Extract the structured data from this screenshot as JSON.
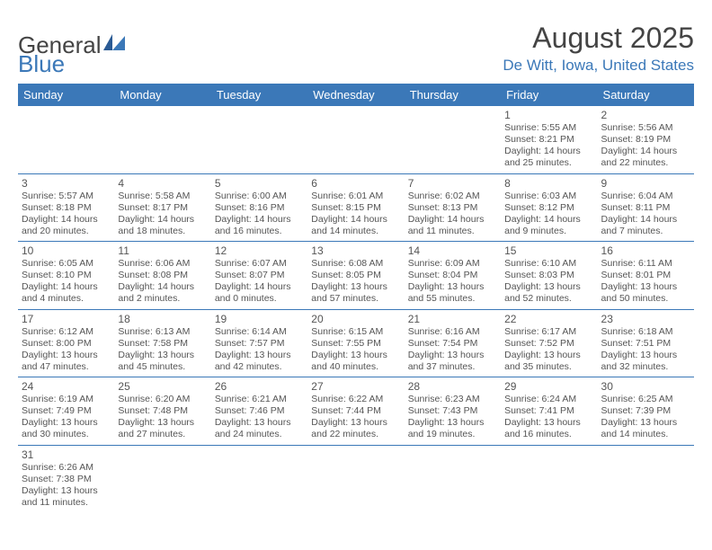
{
  "brand": {
    "part1": "General",
    "part2": "Blue"
  },
  "title": "August 2025",
  "location": "De Witt, Iowa, United States",
  "colors": {
    "header_bg": "#3b78b8",
    "header_text": "#ffffff",
    "accent": "#3b78b8",
    "body_text": "#555555",
    "page_bg": "#ffffff"
  },
  "weekdays": [
    "Sunday",
    "Monday",
    "Tuesday",
    "Wednesday",
    "Thursday",
    "Friday",
    "Saturday"
  ],
  "weeks": [
    [
      null,
      null,
      null,
      null,
      null,
      {
        "n": "1",
        "sr": "Sunrise: 5:55 AM",
        "ss": "Sunset: 8:21 PM",
        "dl": "Daylight: 14 hours and 25 minutes."
      },
      {
        "n": "2",
        "sr": "Sunrise: 5:56 AM",
        "ss": "Sunset: 8:19 PM",
        "dl": "Daylight: 14 hours and 22 minutes."
      }
    ],
    [
      {
        "n": "3",
        "sr": "Sunrise: 5:57 AM",
        "ss": "Sunset: 8:18 PM",
        "dl": "Daylight: 14 hours and 20 minutes."
      },
      {
        "n": "4",
        "sr": "Sunrise: 5:58 AM",
        "ss": "Sunset: 8:17 PM",
        "dl": "Daylight: 14 hours and 18 minutes."
      },
      {
        "n": "5",
        "sr": "Sunrise: 6:00 AM",
        "ss": "Sunset: 8:16 PM",
        "dl": "Daylight: 14 hours and 16 minutes."
      },
      {
        "n": "6",
        "sr": "Sunrise: 6:01 AM",
        "ss": "Sunset: 8:15 PM",
        "dl": "Daylight: 14 hours and 14 minutes."
      },
      {
        "n": "7",
        "sr": "Sunrise: 6:02 AM",
        "ss": "Sunset: 8:13 PM",
        "dl": "Daylight: 14 hours and 11 minutes."
      },
      {
        "n": "8",
        "sr": "Sunrise: 6:03 AM",
        "ss": "Sunset: 8:12 PM",
        "dl": "Daylight: 14 hours and 9 minutes."
      },
      {
        "n": "9",
        "sr": "Sunrise: 6:04 AM",
        "ss": "Sunset: 8:11 PM",
        "dl": "Daylight: 14 hours and 7 minutes."
      }
    ],
    [
      {
        "n": "10",
        "sr": "Sunrise: 6:05 AM",
        "ss": "Sunset: 8:10 PM",
        "dl": "Daylight: 14 hours and 4 minutes."
      },
      {
        "n": "11",
        "sr": "Sunrise: 6:06 AM",
        "ss": "Sunset: 8:08 PM",
        "dl": "Daylight: 14 hours and 2 minutes."
      },
      {
        "n": "12",
        "sr": "Sunrise: 6:07 AM",
        "ss": "Sunset: 8:07 PM",
        "dl": "Daylight: 14 hours and 0 minutes."
      },
      {
        "n": "13",
        "sr": "Sunrise: 6:08 AM",
        "ss": "Sunset: 8:05 PM",
        "dl": "Daylight: 13 hours and 57 minutes."
      },
      {
        "n": "14",
        "sr": "Sunrise: 6:09 AM",
        "ss": "Sunset: 8:04 PM",
        "dl": "Daylight: 13 hours and 55 minutes."
      },
      {
        "n": "15",
        "sr": "Sunrise: 6:10 AM",
        "ss": "Sunset: 8:03 PM",
        "dl": "Daylight: 13 hours and 52 minutes."
      },
      {
        "n": "16",
        "sr": "Sunrise: 6:11 AM",
        "ss": "Sunset: 8:01 PM",
        "dl": "Daylight: 13 hours and 50 minutes."
      }
    ],
    [
      {
        "n": "17",
        "sr": "Sunrise: 6:12 AM",
        "ss": "Sunset: 8:00 PM",
        "dl": "Daylight: 13 hours and 47 minutes."
      },
      {
        "n": "18",
        "sr": "Sunrise: 6:13 AM",
        "ss": "Sunset: 7:58 PM",
        "dl": "Daylight: 13 hours and 45 minutes."
      },
      {
        "n": "19",
        "sr": "Sunrise: 6:14 AM",
        "ss": "Sunset: 7:57 PM",
        "dl": "Daylight: 13 hours and 42 minutes."
      },
      {
        "n": "20",
        "sr": "Sunrise: 6:15 AM",
        "ss": "Sunset: 7:55 PM",
        "dl": "Daylight: 13 hours and 40 minutes."
      },
      {
        "n": "21",
        "sr": "Sunrise: 6:16 AM",
        "ss": "Sunset: 7:54 PM",
        "dl": "Daylight: 13 hours and 37 minutes."
      },
      {
        "n": "22",
        "sr": "Sunrise: 6:17 AM",
        "ss": "Sunset: 7:52 PM",
        "dl": "Daylight: 13 hours and 35 minutes."
      },
      {
        "n": "23",
        "sr": "Sunrise: 6:18 AM",
        "ss": "Sunset: 7:51 PM",
        "dl": "Daylight: 13 hours and 32 minutes."
      }
    ],
    [
      {
        "n": "24",
        "sr": "Sunrise: 6:19 AM",
        "ss": "Sunset: 7:49 PM",
        "dl": "Daylight: 13 hours and 30 minutes."
      },
      {
        "n": "25",
        "sr": "Sunrise: 6:20 AM",
        "ss": "Sunset: 7:48 PM",
        "dl": "Daylight: 13 hours and 27 minutes."
      },
      {
        "n": "26",
        "sr": "Sunrise: 6:21 AM",
        "ss": "Sunset: 7:46 PM",
        "dl": "Daylight: 13 hours and 24 minutes."
      },
      {
        "n": "27",
        "sr": "Sunrise: 6:22 AM",
        "ss": "Sunset: 7:44 PM",
        "dl": "Daylight: 13 hours and 22 minutes."
      },
      {
        "n": "28",
        "sr": "Sunrise: 6:23 AM",
        "ss": "Sunset: 7:43 PM",
        "dl": "Daylight: 13 hours and 19 minutes."
      },
      {
        "n": "29",
        "sr": "Sunrise: 6:24 AM",
        "ss": "Sunset: 7:41 PM",
        "dl": "Daylight: 13 hours and 16 minutes."
      },
      {
        "n": "30",
        "sr": "Sunrise: 6:25 AM",
        "ss": "Sunset: 7:39 PM",
        "dl": "Daylight: 13 hours and 14 minutes."
      }
    ],
    [
      {
        "n": "31",
        "sr": "Sunrise: 6:26 AM",
        "ss": "Sunset: 7:38 PM",
        "dl": "Daylight: 13 hours and 11 minutes."
      },
      null,
      null,
      null,
      null,
      null,
      null
    ]
  ]
}
